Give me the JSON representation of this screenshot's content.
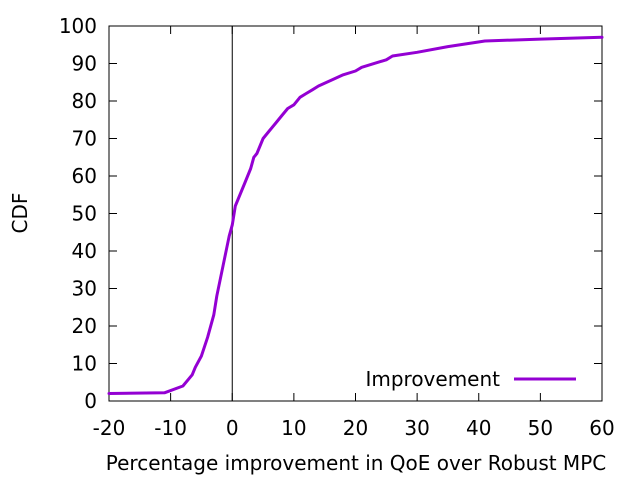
{
  "chart_data": {
    "type": "line",
    "title": "",
    "xlabel": "Percentage improvement in QoE over Robust MPC",
    "ylabel": "CDF",
    "xlim": [
      -20,
      60
    ],
    "ylim": [
      0,
      100
    ],
    "xticks": [
      -20,
      -10,
      0,
      10,
      20,
      30,
      40,
      50,
      60
    ],
    "yticks": [
      0,
      10,
      20,
      30,
      40,
      50,
      60,
      70,
      80,
      90,
      100
    ],
    "x_tick_labels": [
      "-20",
      "-10",
      "0",
      "10",
      "20",
      "30",
      "40",
      "50",
      "60"
    ],
    "y_tick_labels": [
      "0",
      "10",
      "20",
      "30",
      "40",
      "50",
      "60",
      "70",
      "80",
      "90",
      "100"
    ],
    "reference_line_x": 0,
    "legend_position": "bottom-right",
    "series": [
      {
        "name": "Improvement",
        "color": "#9400D3",
        "x": [
          -20,
          -11,
          -8,
          -6.5,
          -6,
          -5,
          -4,
          -3,
          -2.5,
          -2,
          -1.5,
          -1,
          -0.5,
          0,
          0.5,
          1,
          1.5,
          2,
          3,
          3.5,
          4,
          5,
          6,
          7,
          8,
          9,
          10,
          11,
          12,
          13,
          14,
          16,
          18,
          20,
          21,
          25,
          26,
          30,
          35,
          41,
          50,
          60
        ],
        "y": [
          2,
          2.2,
          4,
          7,
          9,
          12,
          17,
          23,
          28,
          32,
          36,
          40,
          44,
          47,
          52,
          54,
          56,
          58,
          62,
          65,
          66,
          70,
          72,
          74,
          76,
          78,
          79,
          81,
          82,
          83,
          84,
          85.5,
          87,
          88,
          89,
          91,
          92,
          93,
          94.5,
          96,
          96.5,
          97
        ]
      }
    ]
  }
}
